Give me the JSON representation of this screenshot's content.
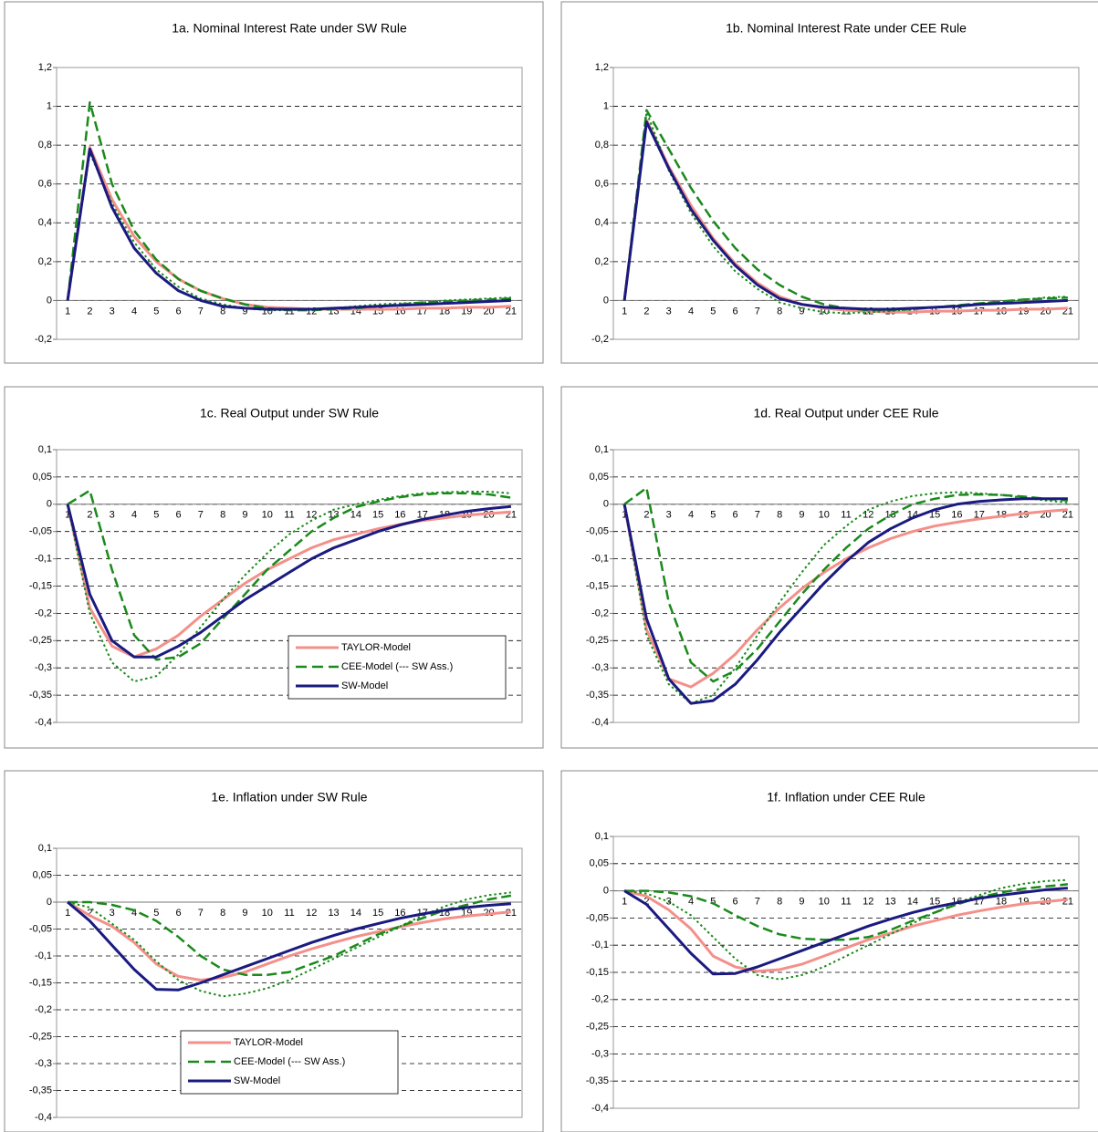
{
  "chart_data": [
    {
      "type": "line",
      "title": "1a. Nominal Interest Rate under SW Rule",
      "categories": [
        "1",
        "2",
        "3",
        "4",
        "5",
        "6",
        "7",
        "8",
        "9",
        "10",
        "11",
        "12",
        "13",
        "14",
        "15",
        "16",
        "17",
        "18",
        "19",
        "20",
        "21"
      ],
      "ylim": [
        -0.2,
        1.2
      ],
      "yticks": [
        {
          "value": -0.2,
          "label": "-0,2"
        },
        0,
        {
          "value": 0.2,
          "label": "0,2"
        },
        {
          "value": 0.4,
          "label": "0,4"
        },
        {
          "value": 0.6,
          "label": "0,6"
        },
        {
          "value": 0.8,
          "label": "0,8"
        },
        1,
        {
          "value": 1.2,
          "label": "1,2"
        }
      ],
      "grid": true,
      "series": [
        {
          "color": "#f4908a",
          "style": "solid",
          "values": [
            0,
            0.79,
            0.52,
            0.33,
            0.2,
            0.11,
            0.05,
            0.01,
            -0.02,
            -0.035,
            -0.04,
            -0.045,
            -0.045,
            -0.045,
            -0.045,
            -0.045,
            -0.04,
            -0.04,
            -0.035,
            -0.035,
            -0.03
          ]
        },
        {
          "color": "#1a8a1a",
          "style": "dashed",
          "values": [
            0,
            1.02,
            0.6,
            0.36,
            0.21,
            0.11,
            0.05,
            0.01,
            -0.02,
            -0.04,
            -0.05,
            -0.05,
            -0.045,
            -0.04,
            -0.03,
            -0.02,
            -0.01,
            -0.005,
            0,
            0.005,
            0.01
          ]
        },
        {
          "color": "#1a8a1a",
          "style": "dotted",
          "values": [
            0,
            0.76,
            0.5,
            0.3,
            0.16,
            0.07,
            0.01,
            -0.02,
            -0.04,
            -0.05,
            -0.05,
            -0.045,
            -0.04,
            -0.03,
            -0.02,
            -0.015,
            -0.01,
            0,
            0.005,
            0.01,
            0.015
          ]
        },
        {
          "color": "#1a1a80",
          "style": "solid",
          "values": [
            0,
            0.78,
            0.48,
            0.27,
            0.14,
            0.05,
            0.0,
            -0.03,
            -0.04,
            -0.045,
            -0.045,
            -0.045,
            -0.04,
            -0.035,
            -0.03,
            -0.025,
            -0.02,
            -0.015,
            -0.01,
            -0.005,
            0
          ]
        }
      ]
    },
    {
      "type": "line",
      "title": "1b. Nominal Interest Rate under CEE Rule",
      "categories": [
        "1",
        "2",
        "3",
        "4",
        "5",
        "6",
        "7",
        "8",
        "9",
        "10",
        "11",
        "12",
        "13",
        "14",
        "15",
        "16",
        "17",
        "18",
        "19",
        "20",
        "21"
      ],
      "ylim": [
        -0.2,
        1.2
      ],
      "yticks": [
        {
          "value": -0.2,
          "label": "-0,2"
        },
        0,
        {
          "value": 0.2,
          "label": "0,2"
        },
        {
          "value": 0.4,
          "label": "0,4"
        },
        {
          "value": 0.6,
          "label": "0,6"
        },
        {
          "value": 0.8,
          "label": "0,8"
        },
        1,
        {
          "value": 1.2,
          "label": "1,2"
        }
      ],
      "grid": true,
      "series": [
        {
          "color": "#f4908a",
          "style": "solid",
          "values": [
            0,
            0.93,
            0.69,
            0.49,
            0.32,
            0.19,
            0.09,
            0.02,
            -0.02,
            -0.04,
            -0.05,
            -0.055,
            -0.06,
            -0.06,
            -0.055,
            -0.055,
            -0.05,
            -0.05,
            -0.045,
            -0.045,
            -0.04
          ]
        },
        {
          "color": "#1a8a1a",
          "style": "dashed",
          "values": [
            0,
            0.98,
            0.78,
            0.58,
            0.41,
            0.27,
            0.16,
            0.08,
            0.02,
            -0.02,
            -0.04,
            -0.05,
            -0.05,
            -0.045,
            -0.035,
            -0.025,
            -0.015,
            -0.005,
            0.005,
            0.01,
            0.015
          ]
        },
        {
          "color": "#1a8a1a",
          "style": "dotted",
          "values": [
            0,
            0.97,
            0.67,
            0.45,
            0.28,
            0.15,
            0.06,
            -0.01,
            -0.04,
            -0.06,
            -0.065,
            -0.06,
            -0.055,
            -0.045,
            -0.035,
            -0.025,
            -0.015,
            -0.005,
            0.005,
            0.015,
            0.02
          ]
        },
        {
          "color": "#1a1a80",
          "style": "solid",
          "values": [
            0,
            0.92,
            0.68,
            0.47,
            0.31,
            0.18,
            0.08,
            0.01,
            -0.02,
            -0.035,
            -0.04,
            -0.045,
            -0.045,
            -0.04,
            -0.035,
            -0.03,
            -0.02,
            -0.015,
            -0.01,
            -0.005,
            0
          ]
        }
      ]
    },
    {
      "type": "line",
      "title": "1c. Real Output under SW Rule",
      "categories": [
        "1",
        "2",
        "3",
        "4",
        "5",
        "6",
        "7",
        "8",
        "9",
        "10",
        "11",
        "12",
        "13",
        "14",
        "15",
        "16",
        "17",
        "18",
        "19",
        "20",
        "21"
      ],
      "ylim": [
        -0.4,
        0.1
      ],
      "yticks": [
        {
          "value": -0.4,
          "label": "-0,4"
        },
        {
          "value": -0.35,
          "label": "-0,35"
        },
        {
          "value": -0.3,
          "label": "-0,3"
        },
        {
          "value": -0.25,
          "label": "-0,25"
        },
        {
          "value": -0.2,
          "label": "-0,2"
        },
        {
          "value": -0.15,
          "label": "-0,15"
        },
        {
          "value": -0.1,
          "label": "-0,1"
        },
        {
          "value": -0.05,
          "label": "-0,05"
        },
        0,
        {
          "value": 0.05,
          "label": "0,05"
        },
        {
          "value": 0.1,
          "label": "0,1"
        }
      ],
      "grid": true,
      "legend": "lower right",
      "series": [
        {
          "name": "TAYLOR-Model",
          "color": "#f4908a",
          "style": "solid",
          "values": [
            0,
            -0.19,
            -0.26,
            -0.28,
            -0.265,
            -0.24,
            -0.205,
            -0.175,
            -0.145,
            -0.12,
            -0.1,
            -0.08,
            -0.065,
            -0.055,
            -0.045,
            -0.037,
            -0.03,
            -0.025,
            -0.02,
            -0.017,
            -0.014
          ]
        },
        {
          "name": "CEE-Model (--- SW Ass.)",
          "color": "#1a8a1a",
          "style": "dashed",
          "values": [
            0,
            0.025,
            -0.12,
            -0.24,
            -0.285,
            -0.28,
            -0.255,
            -0.21,
            -0.165,
            -0.12,
            -0.085,
            -0.05,
            -0.025,
            -0.005,
            0.005,
            0.013,
            0.018,
            0.02,
            0.02,
            0.018,
            0.012
          ]
        },
        {
          "color": "#1a8a1a",
          "style": "dotted",
          "values": [
            0,
            -0.2,
            -0.29,
            -0.325,
            -0.315,
            -0.275,
            -0.225,
            -0.175,
            -0.13,
            -0.09,
            -0.055,
            -0.03,
            -0.01,
            0.0,
            0.008,
            0.015,
            0.02,
            0.022,
            0.023,
            0.023,
            0.02
          ]
        },
        {
          "name": "SW-Model",
          "color": "#1a1a80",
          "style": "solid",
          "values": [
            0,
            -0.165,
            -0.25,
            -0.28,
            -0.28,
            -0.26,
            -0.235,
            -0.205,
            -0.175,
            -0.15,
            -0.125,
            -0.1,
            -0.08,
            -0.065,
            -0.05,
            -0.038,
            -0.028,
            -0.02,
            -0.013,
            -0.008,
            -0.004
          ]
        }
      ]
    },
    {
      "type": "line",
      "title": "1d. Real Output under CEE Rule",
      "categories": [
        "1",
        "2",
        "3",
        "4",
        "5",
        "6",
        "7",
        "8",
        "9",
        "10",
        "11",
        "12",
        "13",
        "14",
        "15",
        "16",
        "17",
        "18",
        "19",
        "20",
        "21"
      ],
      "ylim": [
        -0.4,
        0.1
      ],
      "yticks": [
        {
          "value": -0.4,
          "label": "-0,4"
        },
        {
          "value": -0.35,
          "label": "-0,35"
        },
        {
          "value": -0.3,
          "label": "-0,3"
        },
        {
          "value": -0.25,
          "label": "-0,25"
        },
        {
          "value": -0.2,
          "label": "-0,2"
        },
        {
          "value": -0.15,
          "label": "-0,15"
        },
        {
          "value": -0.1,
          "label": "-0,1"
        },
        {
          "value": -0.05,
          "label": "-0,05"
        },
        0,
        {
          "value": 0.05,
          "label": "0,05"
        },
        {
          "value": 0.1,
          "label": "0,1"
        }
      ],
      "grid": true,
      "series": [
        {
          "color": "#f4908a",
          "style": "solid",
          "values": [
            0,
            -0.23,
            -0.32,
            -0.335,
            -0.31,
            -0.275,
            -0.23,
            -0.19,
            -0.155,
            -0.125,
            -0.1,
            -0.08,
            -0.063,
            -0.05,
            -0.04,
            -0.033,
            -0.027,
            -0.022,
            -0.017,
            -0.013,
            -0.01
          ]
        },
        {
          "color": "#1a8a1a",
          "style": "dashed",
          "values": [
            0,
            0.03,
            -0.18,
            -0.29,
            -0.325,
            -0.305,
            -0.265,
            -0.215,
            -0.165,
            -0.12,
            -0.08,
            -0.045,
            -0.02,
            0.0,
            0.01,
            0.017,
            0.018,
            0.017,
            0.014,
            0.01,
            0.007
          ]
        },
        {
          "color": "#1a8a1a",
          "style": "dotted",
          "values": [
            0,
            -0.24,
            -0.33,
            -0.365,
            -0.35,
            -0.3,
            -0.24,
            -0.18,
            -0.125,
            -0.075,
            -0.04,
            -0.01,
            0.005,
            0.015,
            0.02,
            0.022,
            0.02,
            0.017,
            0.012,
            0.007,
            0.003
          ]
        },
        {
          "color": "#1a1a80",
          "style": "solid",
          "values": [
            0,
            -0.21,
            -0.32,
            -0.365,
            -0.36,
            -0.33,
            -0.285,
            -0.235,
            -0.19,
            -0.145,
            -0.105,
            -0.07,
            -0.045,
            -0.025,
            -0.01,
            0,
            0.005,
            0.008,
            0.01,
            0.01,
            0.01
          ]
        }
      ]
    },
    {
      "type": "line",
      "title": "1e. Inflation under SW Rule",
      "categories": [
        "1",
        "2",
        "3",
        "4",
        "5",
        "6",
        "7",
        "8",
        "9",
        "10",
        "11",
        "12",
        "13",
        "14",
        "15",
        "16",
        "17",
        "18",
        "19",
        "20",
        "21"
      ],
      "ylim": [
        -0.4,
        0.1
      ],
      "yticks": [
        {
          "value": -0.4,
          "label": "-0,4"
        },
        {
          "value": -0.35,
          "label": "-0,35"
        },
        {
          "value": -0.3,
          "label": "-0,3"
        },
        {
          "value": -0.25,
          "label": "-0,25"
        },
        {
          "value": -0.2,
          "label": "-0,2"
        },
        {
          "value": -0.15,
          "label": "-0,15"
        },
        {
          "value": -0.1,
          "label": "-0,1"
        },
        {
          "value": -0.05,
          "label": "-0,05"
        },
        0,
        {
          "value": 0.05,
          "label": "0,05"
        },
        {
          "value": 0.1,
          "label": "0,1"
        }
      ],
      "grid": true,
      "legend": "lower center",
      "series": [
        {
          "name": "TAYLOR-Model",
          "color": "#f4908a",
          "style": "solid",
          "values": [
            0,
            -0.025,
            -0.045,
            -0.075,
            -0.115,
            -0.138,
            -0.145,
            -0.14,
            -0.13,
            -0.115,
            -0.1,
            -0.087,
            -0.075,
            -0.064,
            -0.055,
            -0.046,
            -0.038,
            -0.031,
            -0.026,
            -0.022,
            -0.018
          ]
        },
        {
          "name": "CEE-Model (--- SW Ass.)",
          "color": "#1a8a1a",
          "style": "dashed",
          "values": [
            0,
            0,
            -0.005,
            -0.015,
            -0.035,
            -0.065,
            -0.1,
            -0.125,
            -0.135,
            -0.135,
            -0.13,
            -0.115,
            -0.1,
            -0.08,
            -0.06,
            -0.045,
            -0.03,
            -0.015,
            -0.005,
            0.005,
            0.012
          ]
        },
        {
          "color": "#1a8a1a",
          "style": "dotted",
          "values": [
            0,
            -0.01,
            -0.04,
            -0.07,
            -0.11,
            -0.145,
            -0.165,
            -0.175,
            -0.17,
            -0.16,
            -0.145,
            -0.125,
            -0.105,
            -0.085,
            -0.065,
            -0.045,
            -0.025,
            -0.008,
            0.005,
            0.013,
            0.018
          ]
        },
        {
          "name": "SW-Model",
          "color": "#1a1a80",
          "style": "solid",
          "values": [
            0,
            -0.035,
            -0.08,
            -0.125,
            -0.162,
            -0.163,
            -0.15,
            -0.135,
            -0.12,
            -0.105,
            -0.09,
            -0.075,
            -0.062,
            -0.05,
            -0.04,
            -0.03,
            -0.022,
            -0.015,
            -0.01,
            -0.006,
            -0.003
          ]
        }
      ]
    },
    {
      "type": "line",
      "title": "1f. Inflation under CEE Rule",
      "categories": [
        "1",
        "2",
        "3",
        "4",
        "5",
        "6",
        "7",
        "8",
        "9",
        "10",
        "11",
        "12",
        "13",
        "14",
        "15",
        "16",
        "17",
        "18",
        "19",
        "20",
        "21"
      ],
      "ylim": [
        -0.4,
        0.1
      ],
      "yticks": [
        {
          "value": -0.4,
          "label": "-0,4"
        },
        {
          "value": -0.35,
          "label": "-0,35"
        },
        {
          "value": -0.3,
          "label": "-0,3"
        },
        {
          "value": -0.25,
          "label": "-0,25"
        },
        {
          "value": -0.2,
          "label": "-0,2"
        },
        {
          "value": -0.15,
          "label": "-0,15"
        },
        {
          "value": -0.1,
          "label": "-0,1"
        },
        {
          "value": -0.05,
          "label": "-0,05"
        },
        0,
        {
          "value": 0.05,
          "label": "0,05"
        },
        {
          "value": 0.1,
          "label": "0,1"
        }
      ],
      "grid": true,
      "series": [
        {
          "color": "#f4908a",
          "style": "solid",
          "values": [
            0,
            -0.01,
            -0.035,
            -0.07,
            -0.12,
            -0.14,
            -0.148,
            -0.145,
            -0.135,
            -0.12,
            -0.105,
            -0.09,
            -0.078,
            -0.065,
            -0.055,
            -0.045,
            -0.037,
            -0.03,
            -0.024,
            -0.02,
            -0.016
          ]
        },
        {
          "color": "#1a8a1a",
          "style": "dashed",
          "values": [
            0,
            0,
            -0.003,
            -0.01,
            -0.023,
            -0.045,
            -0.065,
            -0.08,
            -0.088,
            -0.09,
            -0.09,
            -0.085,
            -0.072,
            -0.055,
            -0.04,
            -0.025,
            -0.012,
            -0.003,
            0.004,
            0.008,
            0.012
          ]
        },
        {
          "color": "#1a8a1a",
          "style": "dotted",
          "values": [
            0,
            -0.005,
            -0.02,
            -0.045,
            -0.085,
            -0.125,
            -0.155,
            -0.163,
            -0.155,
            -0.14,
            -0.12,
            -0.1,
            -0.08,
            -0.06,
            -0.04,
            -0.022,
            -0.008,
            0.005,
            0.013,
            0.018,
            0.02
          ]
        },
        {
          "color": "#1a1a80",
          "style": "solid",
          "values": [
            0,
            -0.025,
            -0.07,
            -0.115,
            -0.153,
            -0.152,
            -0.14,
            -0.125,
            -0.11,
            -0.095,
            -0.08,
            -0.065,
            -0.052,
            -0.04,
            -0.03,
            -0.022,
            -0.014,
            -0.008,
            -0.003,
            0.002,
            0.005
          ]
        }
      ]
    }
  ]
}
